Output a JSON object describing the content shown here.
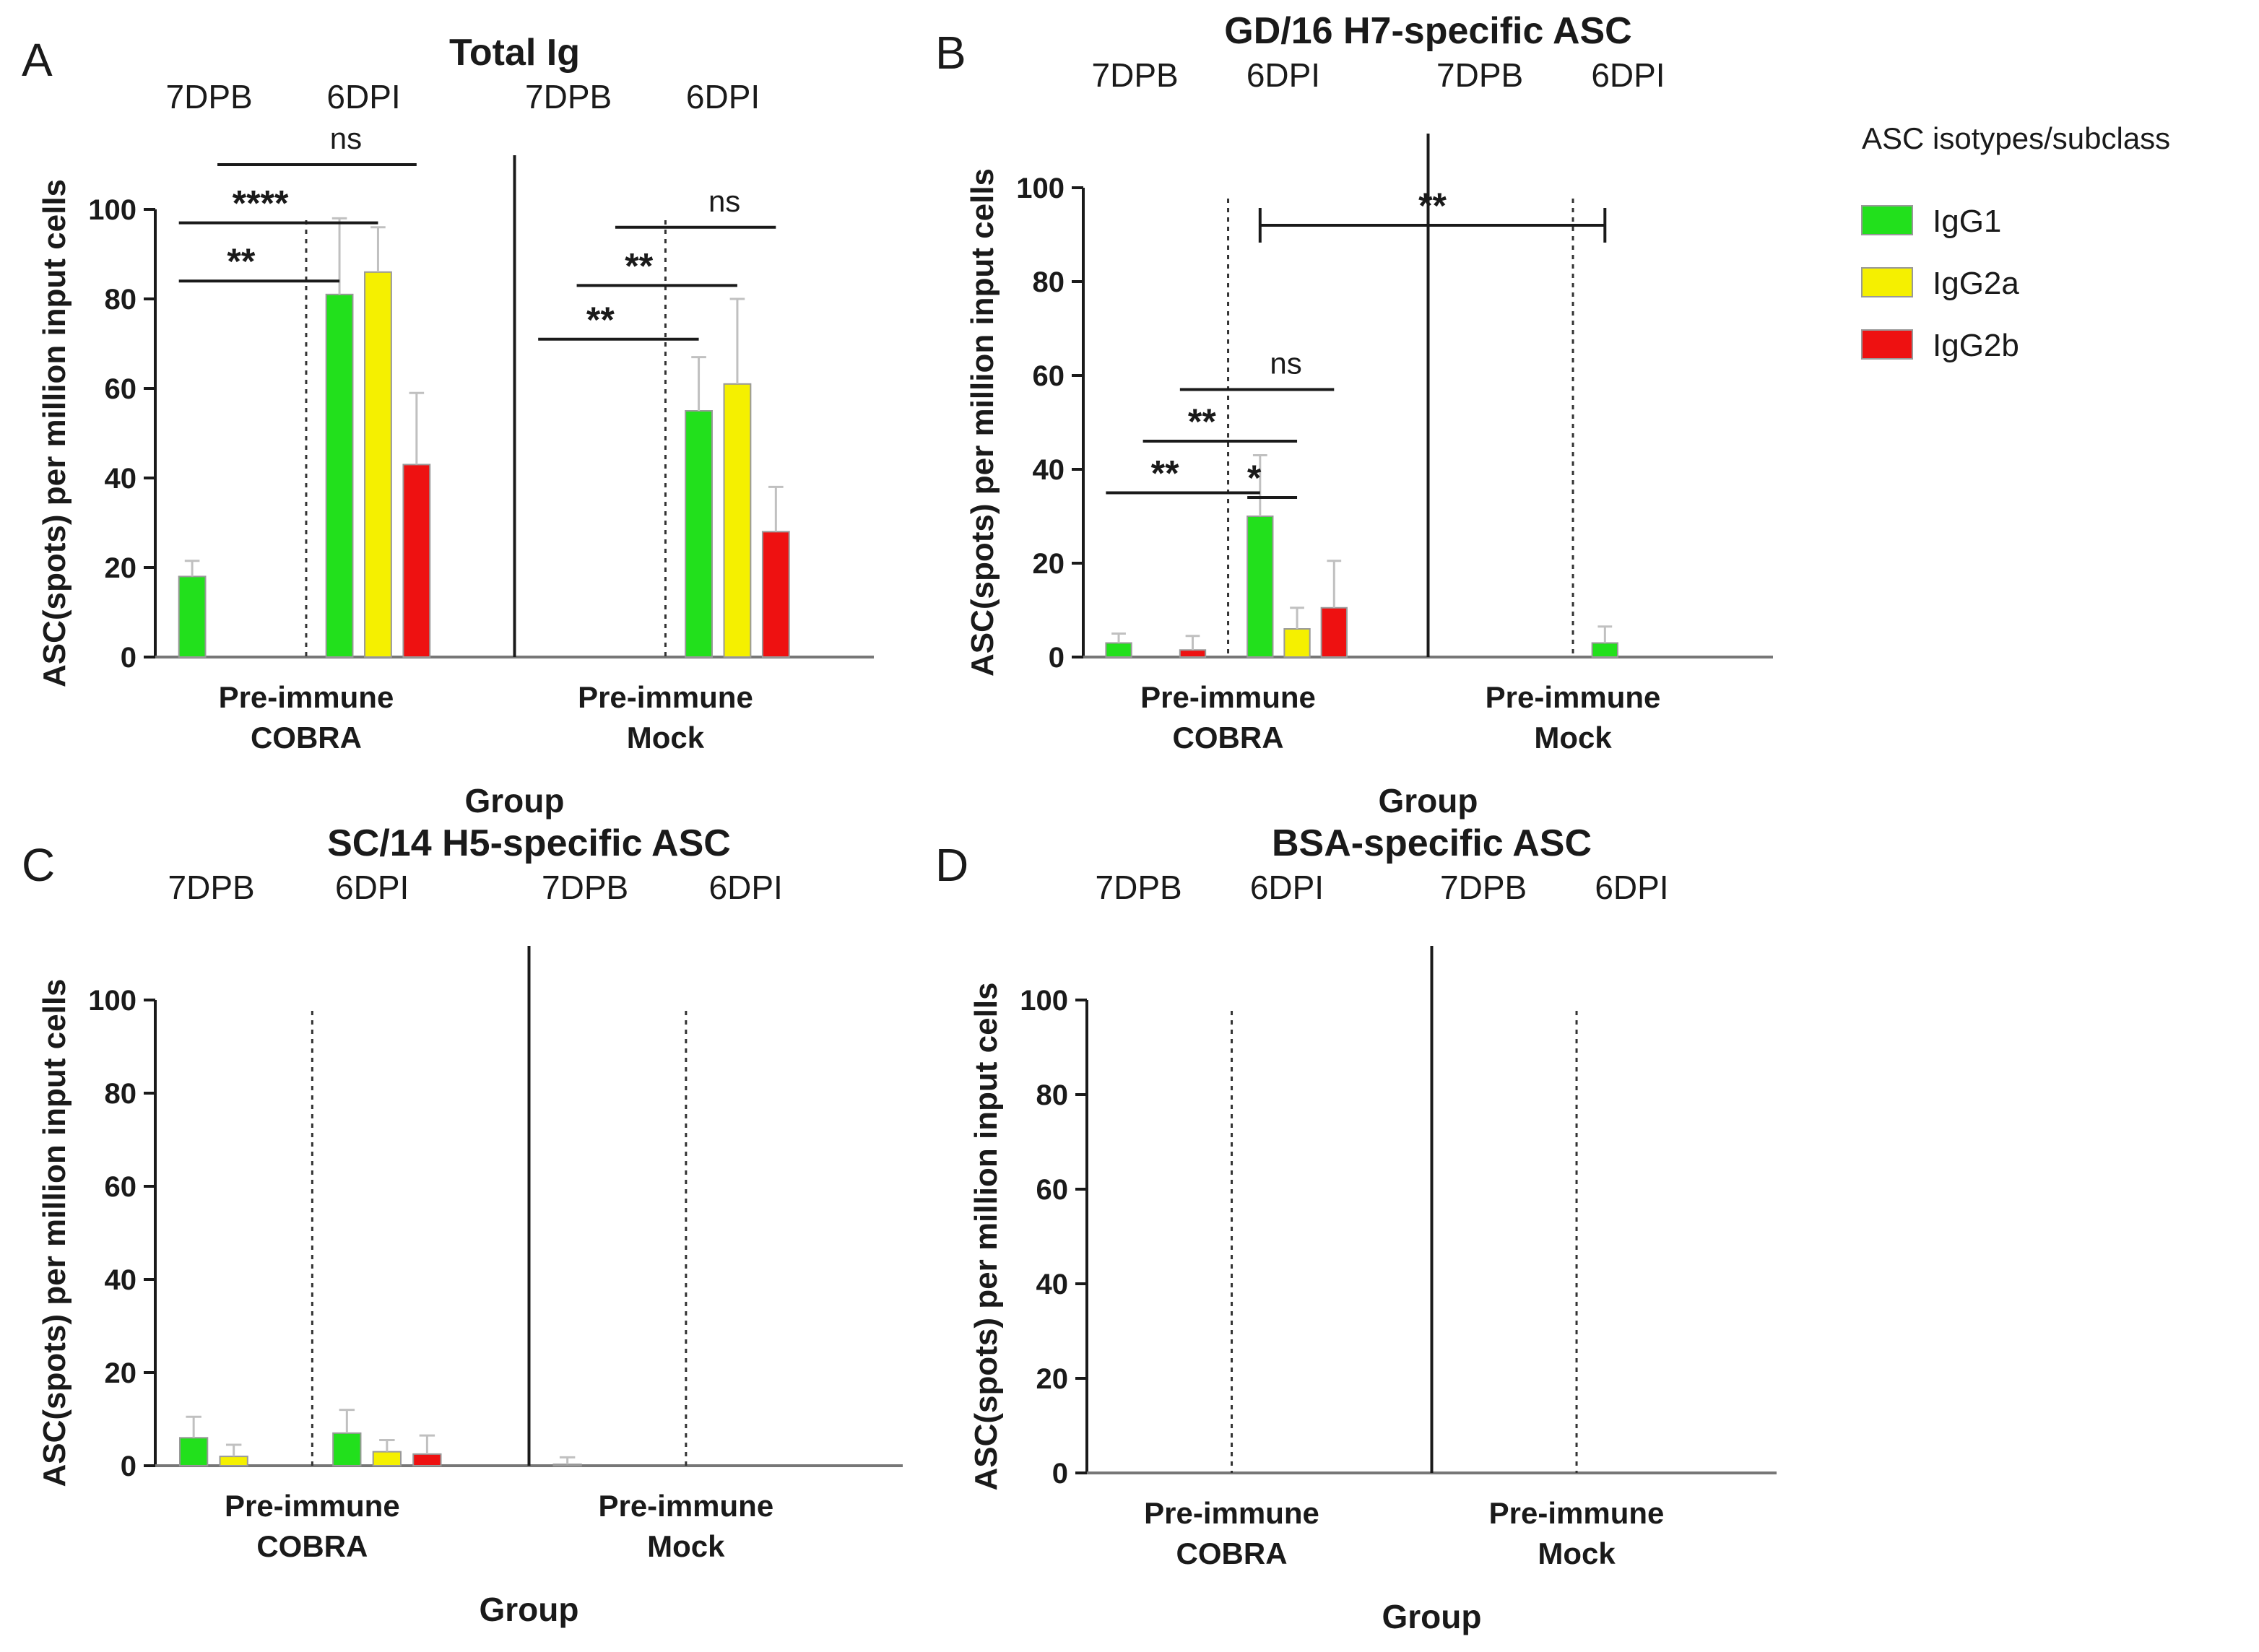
{
  "legend": {
    "title": "ASC isotypes/subclass",
    "entries": [
      {
        "name": "IgG1",
        "color": "#22e01c"
      },
      {
        "name": "IgG2a",
        "color": "#f5f000"
      },
      {
        "name": "IgG2b",
        "color": "#ee1111"
      }
    ]
  },
  "chart_data": [
    {
      "type": "bar",
      "panel": "A",
      "title": "Total Ig",
      "xlabel": "Group",
      "ylabel": "ASC(spots) per million input cells",
      "ylim": [
        0,
        100
      ],
      "yticks": [
        0,
        20,
        40,
        60,
        80,
        100
      ],
      "groups": [
        {
          "label_line1": "Pre-immune",
          "label_line2": "COBRA",
          "timepoints": [
            "7DPB",
            "6DPI"
          ]
        },
        {
          "label_line1": "Pre-immune",
          "label_line2": "Mock",
          "timepoints": [
            "7DPB",
            "6DPI"
          ]
        }
      ],
      "series": [
        {
          "name": "IgG1",
          "values": [
            [
              18,
              81
            ],
            [
              0,
              55
            ]
          ],
          "errors": [
            [
              3.5,
              17
            ],
            [
              0,
              12
            ]
          ]
        },
        {
          "name": "IgG2a",
          "values": [
            [
              0,
              86
            ],
            [
              0,
              61
            ]
          ],
          "errors": [
            [
              0,
              10
            ],
            [
              0,
              19
            ]
          ]
        },
        {
          "name": "IgG2b",
          "values": [
            [
              0,
              43
            ],
            [
              0,
              28
            ]
          ],
          "errors": [
            [
              0,
              16
            ],
            [
              0,
              10
            ]
          ]
        }
      ],
      "annotations": [
        {
          "group": 0,
          "label": "**",
          "from": {
            "tp": 0,
            "series": 0
          },
          "to": {
            "tp": 1,
            "series": 0
          },
          "y": 84
        },
        {
          "group": 0,
          "label": "****",
          "from": {
            "tp": 0,
            "series": 0
          },
          "to": {
            "tp": 1,
            "series": 1
          },
          "y": 97
        },
        {
          "group": 0,
          "label": "ns",
          "from": {
            "tp": 0,
            "series": 1
          },
          "to": {
            "tp": 1,
            "series": 2
          },
          "y": 110
        },
        {
          "group": 1,
          "label": "**",
          "from": {
            "tp": 0,
            "series": 0
          },
          "to": {
            "tp": 1,
            "series": 0
          },
          "y": 71
        },
        {
          "group": 1,
          "label": "**",
          "from": {
            "tp": 0,
            "series": 1
          },
          "to": {
            "tp": 1,
            "series": 1
          },
          "y": 83
        },
        {
          "group": 1,
          "label": "ns",
          "from": {
            "tp": 0,
            "series": 2
          },
          "to": {
            "tp": 1,
            "series": 2
          },
          "y": 96
        }
      ]
    },
    {
      "type": "bar",
      "panel": "B",
      "title": "GD/16 H7-specific ASC",
      "xlabel": "Group",
      "ylabel": "ASC(spots) per million input cells",
      "ylim": [
        0,
        100
      ],
      "yticks": [
        0,
        20,
        40,
        60,
        80,
        100
      ],
      "groups": [
        {
          "label_line1": "Pre-immune",
          "label_line2": "COBRA",
          "timepoints": [
            "7DPB",
            "6DPI"
          ]
        },
        {
          "label_line1": "Pre-immune",
          "label_line2": "Mock",
          "timepoints": [
            "7DPB",
            "6DPI"
          ]
        }
      ],
      "series": [
        {
          "name": "IgG1",
          "values": [
            [
              3,
              30
            ],
            [
              0,
              3
            ]
          ],
          "errors": [
            [
              2,
              13
            ],
            [
              0,
              3.5
            ]
          ]
        },
        {
          "name": "IgG2a",
          "values": [
            [
              0,
              6
            ],
            [
              0,
              0
            ]
          ],
          "errors": [
            [
              0,
              4.5
            ],
            [
              0,
              0
            ]
          ]
        },
        {
          "name": "IgG2b",
          "values": [
            [
              1.5,
              10.5
            ],
            [
              0,
              0
            ]
          ],
          "errors": [
            [
              3,
              10
            ],
            [
              0,
              0
            ]
          ]
        }
      ],
      "annotations": [
        {
          "group": 0,
          "label": "**",
          "from": {
            "tp": 0,
            "series": 0
          },
          "to": {
            "tp": 1,
            "series": 0
          },
          "y": 35
        },
        {
          "group": 0,
          "label": "**",
          "from": {
            "tp": 0,
            "series": 1
          },
          "to": {
            "tp": 1,
            "series": 1
          },
          "y": 46
        },
        {
          "group": 0,
          "label": "*",
          "from": {
            "tp": 1,
            "series": 0
          },
          "to": {
            "tp": 1,
            "series": 1
          },
          "y": 34
        },
        {
          "group": 0,
          "label": "ns",
          "from": {
            "tp": 0,
            "series": 2
          },
          "to": {
            "tp": 1,
            "series": 2
          },
          "y": 57
        },
        {
          "cross": true,
          "label": "**",
          "from": {
            "group": 0,
            "tp": 1,
            "series": 0
          },
          "to": {
            "group": 1,
            "tp": 1,
            "series": 0
          },
          "y": 92
        }
      ]
    },
    {
      "type": "bar",
      "panel": "C",
      "title": "SC/14 H5-specific ASC",
      "xlabel": "Group",
      "ylabel": "ASC(spots) per million input cells",
      "ylim": [
        0,
        100
      ],
      "yticks": [
        0,
        20,
        40,
        60,
        80,
        100
      ],
      "groups": [
        {
          "label_line1": "Pre-immune",
          "label_line2": "COBRA",
          "timepoints": [
            "7DPB",
            "6DPI"
          ]
        },
        {
          "label_line1": "Pre-immune",
          "label_line2": "Mock",
          "timepoints": [
            "7DPB",
            "6DPI"
          ]
        }
      ],
      "series": [
        {
          "name": "IgG1",
          "values": [
            [
              6,
              7
            ],
            [
              0.3,
              0
            ]
          ],
          "errors": [
            [
              4.5,
              5
            ],
            [
              1.5,
              0
            ]
          ]
        },
        {
          "name": "IgG2a",
          "values": [
            [
              2,
              3
            ],
            [
              0,
              0
            ]
          ],
          "errors": [
            [
              2.5,
              2.5
            ],
            [
              0,
              0
            ]
          ]
        },
        {
          "name": "IgG2b",
          "values": [
            [
              0,
              2.5
            ],
            [
              0,
              0
            ]
          ],
          "errors": [
            [
              0,
              4
            ],
            [
              0,
              0
            ]
          ]
        }
      ],
      "annotations": []
    },
    {
      "type": "bar",
      "panel": "D",
      "title": "BSA-specific ASC",
      "xlabel": "Group",
      "ylabel": "ASC(spots) per million input cells",
      "ylim": [
        0,
        100
      ],
      "yticks": [
        0,
        20,
        40,
        60,
        80,
        100
      ],
      "groups": [
        {
          "label_line1": "Pre-immune",
          "label_line2": "COBRA",
          "timepoints": [
            "7DPB",
            "6DPI"
          ]
        },
        {
          "label_line1": "Pre-immune",
          "label_line2": "Mock",
          "timepoints": [
            "7DPB",
            "6DPI"
          ]
        }
      ],
      "series": [
        {
          "name": "IgG1",
          "values": [
            [
              0,
              0
            ],
            [
              0,
              0
            ]
          ],
          "errors": [
            [
              0,
              0
            ],
            [
              0,
              0
            ]
          ]
        },
        {
          "name": "IgG2a",
          "values": [
            [
              0,
              0
            ],
            [
              0,
              0
            ]
          ],
          "errors": [
            [
              0,
              0
            ],
            [
              0,
              0
            ]
          ]
        },
        {
          "name": "IgG2b",
          "values": [
            [
              0,
              0
            ],
            [
              0,
              0
            ]
          ],
          "errors": [
            [
              0,
              0
            ],
            [
              0,
              0
            ]
          ]
        }
      ],
      "annotations": []
    }
  ]
}
